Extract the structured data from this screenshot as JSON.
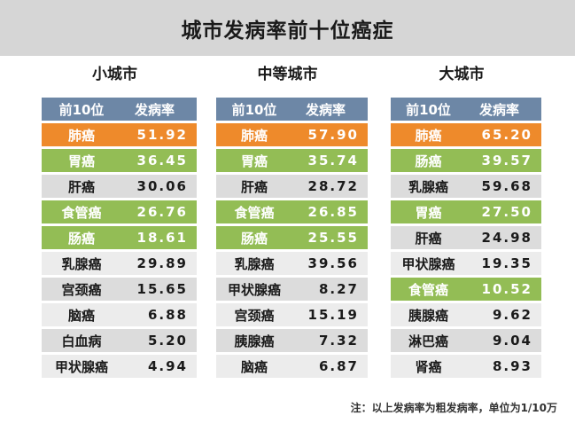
{
  "title": "城市发病率前十位癌症",
  "header": {
    "rank": "前10位",
    "rate": "发病率"
  },
  "groups": [
    {
      "name": "小城市",
      "rows": [
        {
          "name": "肺癌",
          "value": "51.92",
          "color": "orange"
        },
        {
          "name": "胃癌",
          "value": "36.45",
          "color": "green"
        },
        {
          "name": "肝癌",
          "value": "30.06",
          "color": "gray"
        },
        {
          "name": "食管癌",
          "value": "26.76",
          "color": "green"
        },
        {
          "name": "肠癌",
          "value": "18.61",
          "color": "green"
        },
        {
          "name": "乳腺癌",
          "value": "29.89",
          "color": "lightgray"
        },
        {
          "name": "宫颈癌",
          "value": "15.65",
          "color": "gray"
        },
        {
          "name": "脑癌",
          "value": "6.88",
          "color": "lightgray"
        },
        {
          "name": "白血病",
          "value": "5.20",
          "color": "gray"
        },
        {
          "name": "甲状腺癌",
          "value": "4.94",
          "color": "lightgray"
        }
      ]
    },
    {
      "name": "中等城市",
      "rows": [
        {
          "name": "肺癌",
          "value": "57.90",
          "color": "orange"
        },
        {
          "name": "胃癌",
          "value": "35.74",
          "color": "green"
        },
        {
          "name": "肝癌",
          "value": "28.72",
          "color": "gray"
        },
        {
          "name": "食管癌",
          "value": "26.85",
          "color": "green"
        },
        {
          "name": "肠癌",
          "value": "25.55",
          "color": "green"
        },
        {
          "name": "乳腺癌",
          "value": "39.56",
          "color": "lightgray"
        },
        {
          "name": "甲状腺癌",
          "value": "8.27",
          "color": "gray"
        },
        {
          "name": "宫颈癌",
          "value": "15.19",
          "color": "lightgray"
        },
        {
          "name": "胰腺癌",
          "value": "7.32",
          "color": "gray"
        },
        {
          "name": "脑癌",
          "value": "6.87",
          "color": "lightgray"
        }
      ]
    },
    {
      "name": "大城市",
      "rows": [
        {
          "name": "肺癌",
          "value": "65.20",
          "color": "orange"
        },
        {
          "name": "肠癌",
          "value": "39.57",
          "color": "green"
        },
        {
          "name": "乳腺癌",
          "value": "59.68",
          "color": "gray"
        },
        {
          "name": "胃癌",
          "value": "27.50",
          "color": "green"
        },
        {
          "name": "肝癌",
          "value": "24.98",
          "color": "gray"
        },
        {
          "name": "甲状腺癌",
          "value": "19.35",
          "color": "lightgray"
        },
        {
          "name": "食管癌",
          "value": "10.52",
          "color": "green"
        },
        {
          "name": "胰腺癌",
          "value": "9.62",
          "color": "lightgray"
        },
        {
          "name": "淋巴癌",
          "value": "9.04",
          "color": "gray"
        },
        {
          "name": "肾癌",
          "value": "8.93",
          "color": "lightgray"
        }
      ]
    }
  ],
  "note": "注：以上发病率为粗发病率，单位为1/10万"
}
